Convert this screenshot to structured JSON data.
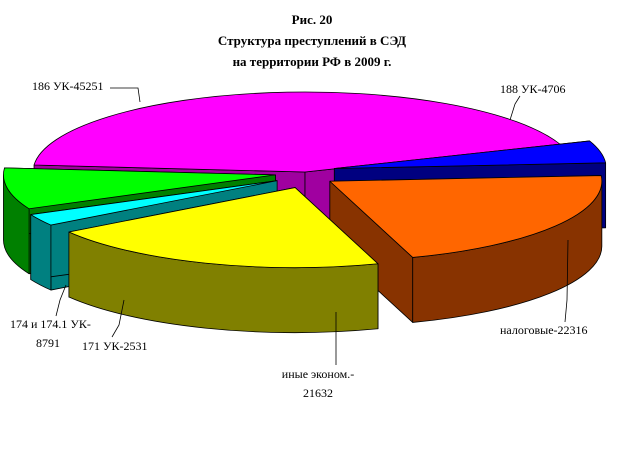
{
  "chart_data": {
    "type": "pie",
    "title_lines": [
      "Рис. 20",
      "Структура преступлений в СЭД",
      "на территории РФ в 2009 г."
    ],
    "slices": [
      {
        "label": "186 УК-45251",
        "value": 45251,
        "color": "#ff00ff",
        "side": "#a000a0"
      },
      {
        "label": "188 УК-4706",
        "value": 4706,
        "color": "#0000ff",
        "side": "#000080"
      },
      {
        "label": "налоговые-22316",
        "value": 22316,
        "color": "#ff6600",
        "side": "#883300"
      },
      {
        "label": "иные эконом.- 21632",
        "value": 21632,
        "color": "#ffff00",
        "side": "#808000"
      },
      {
        "label": "171 УК-2531",
        "value": 2531,
        "color": "#00ffff",
        "side": "#008080"
      },
      {
        "label": "174 и 174.1 УК- 8791",
        "value": 8791,
        "color": "#00ff00",
        "side": "#008000"
      }
    ],
    "legend": "none",
    "grid": false
  }
}
